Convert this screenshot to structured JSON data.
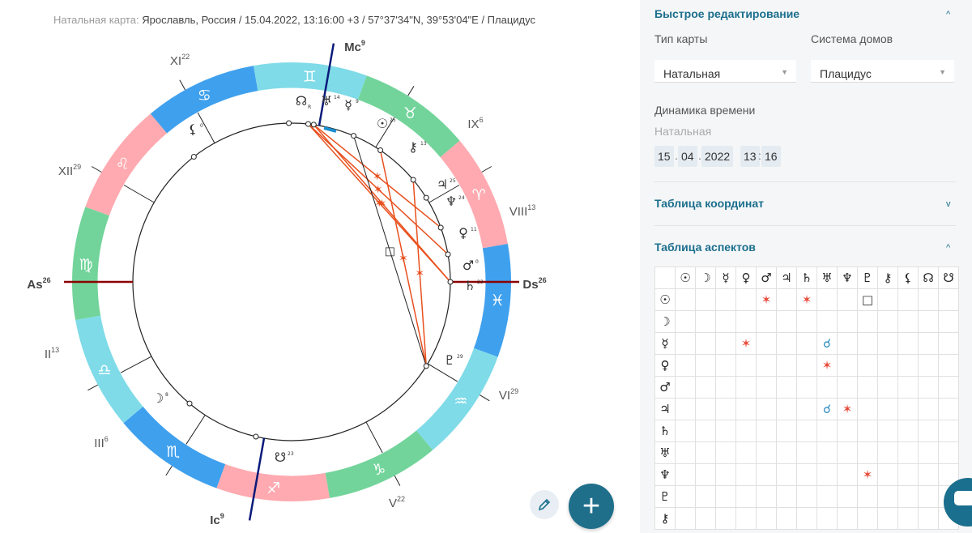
{
  "caption": {
    "prefix": "Натальная карта:",
    "text": "Ярославль, Россия / 15.04.2022, 13:16:00 +3 / 57°37'34\"N, 39°53'04\"E / Плацидус"
  },
  "chart": {
    "axes": [
      {
        "name": "As",
        "deg": "26"
      },
      {
        "name": "Ds",
        "deg": "26"
      },
      {
        "name": "Mc",
        "deg": "9"
      },
      {
        "name": "Ic",
        "deg": "9"
      }
    ],
    "houses": [
      {
        "name": "II",
        "deg": "13"
      },
      {
        "name": "III",
        "deg": "6"
      },
      {
        "name": "V",
        "deg": "22"
      },
      {
        "name": "VI",
        "deg": "29"
      },
      {
        "name": "VIII",
        "deg": "13"
      },
      {
        "name": "IX",
        "deg": "6"
      },
      {
        "name": "XI",
        "deg": "22"
      },
      {
        "name": "XII",
        "deg": "29"
      }
    ],
    "signs": [
      "♉",
      "♈",
      "♓",
      "♒",
      "♑",
      "♐",
      "♏",
      "♎",
      "♍",
      "♌",
      "♋",
      "♊"
    ],
    "planets": [
      {
        "glyph": "☊",
        "sub": "R",
        "deg": ""
      },
      {
        "glyph": "♅",
        "deg": "14"
      },
      {
        "glyph": "☿",
        "deg": "9"
      },
      {
        "glyph": "☉",
        "deg": "25"
      },
      {
        "glyph": "⚷",
        "deg": "13"
      },
      {
        "glyph": "♃",
        "deg": "25"
      },
      {
        "glyph": "♆",
        "deg": "24"
      },
      {
        "glyph": "♀",
        "deg": "11"
      },
      {
        "glyph": "♂",
        "deg": "0"
      },
      {
        "glyph": "♄",
        "deg": "23"
      },
      {
        "glyph": "♇",
        "deg": "29"
      },
      {
        "glyph": "☋",
        "deg": "23"
      },
      {
        "glyph": "☽",
        "deg": "8"
      },
      {
        "glyph": "⚸",
        "deg": "0"
      }
    ],
    "aspect_glyphs": {
      "square": "□",
      "sextile": "✶"
    }
  },
  "fab": {
    "label": "+"
  },
  "panel": {
    "quick_edit": {
      "title": "Быстрое редактирование",
      "chart_type_label": "Тип карты",
      "chart_type_value": "Натальная",
      "house_system_label": "Система домов",
      "house_system_value": "Плацидус",
      "time_dynamics_label": "Динамика времени",
      "time_dynamics_value": "Натальная",
      "date": {
        "day": "15",
        "month": "04",
        "year": "2022"
      },
      "time": {
        "hour": "13",
        "minute": "16"
      }
    },
    "coords_title": "Таблица координат",
    "aspects_title": "Таблица аспектов",
    "aspect_table": {
      "header": [
        "☉",
        "☽",
        "☿",
        "♀",
        "♂",
        "♃",
        "♄",
        "♅",
        "♆",
        "♇",
        "⚷",
        "⚸",
        "☊",
        "☋"
      ],
      "rows": [
        {
          "planet": "☉",
          "cells": [
            "",
            "",
            "",
            "",
            "✶",
            "",
            "✶",
            "",
            "",
            "□",
            "",
            "",
            "",
            ""
          ]
        },
        {
          "planet": "☽",
          "cells": [
            "",
            "",
            "",
            "",
            "",
            "",
            "",
            "",
            "",
            "",
            "",
            "",
            "",
            ""
          ]
        },
        {
          "planet": "☿",
          "cells": [
            "",
            "",
            "",
            "✶",
            "",
            "",
            "",
            "☌",
            "",
            "",
            "",
            "",
            "",
            ""
          ]
        },
        {
          "planet": "♀",
          "cells": [
            "",
            "",
            "",
            "",
            "",
            "",
            "",
            "✶",
            "",
            "",
            "",
            "",
            "",
            ""
          ]
        },
        {
          "planet": "♂",
          "cells": [
            "",
            "",
            "",
            "",
            "",
            "",
            "",
            "",
            "",
            "",
            "",
            "",
            "",
            ""
          ]
        },
        {
          "planet": "♃",
          "cells": [
            "",
            "",
            "",
            "",
            "",
            "",
            "",
            "☌",
            "✶",
            "",
            "",
            "",
            "",
            ""
          ]
        },
        {
          "planet": "♄",
          "cells": [
            "",
            "",
            "",
            "",
            "",
            "",
            "",
            "",
            "",
            "",
            "",
            "",
            "",
            ""
          ]
        },
        {
          "planet": "♅",
          "cells": [
            "",
            "",
            "",
            "",
            "",
            "",
            "",
            "",
            "",
            "",
            "",
            "",
            "",
            ""
          ]
        },
        {
          "planet": "♆",
          "cells": [
            "",
            "",
            "",
            "",
            "",
            "",
            "",
            "",
            "",
            "✶",
            "",
            "",
            "",
            ""
          ]
        },
        {
          "planet": "♇",
          "cells": [
            "",
            "",
            "",
            "",
            "",
            "",
            "",
            "",
            "",
            "",
            "",
            "",
            "",
            ""
          ]
        },
        {
          "planet": "⚷",
          "cells": [
            "",
            "",
            "",
            "",
            "",
            "",
            "",
            "",
            "",
            "",
            "",
            "",
            "",
            ""
          ]
        }
      ]
    }
  },
  "colors": {
    "accent": "#1b6f8e",
    "fab": "#1f6f8b",
    "aspect_red": "#e74c3c",
    "aspect_blue": "#2a8bbf",
    "axis_as": "#8b0000",
    "axis_mc": "#0a1a7a",
    "fire": "#ffaab0",
    "earth": "#72d49a",
    "air": "#7fdbe8",
    "water": "#3fa0ee"
  }
}
